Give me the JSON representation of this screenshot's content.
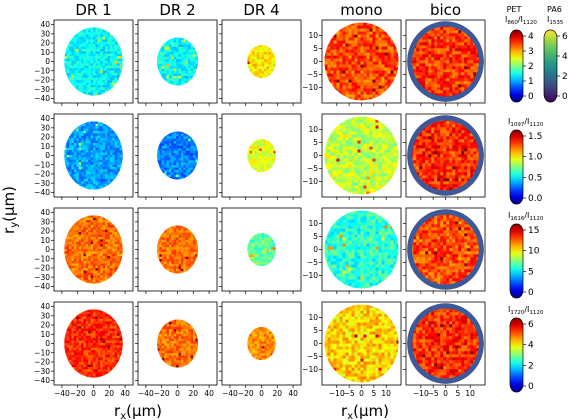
{
  "chart_data": {
    "type": "heatmap",
    "columns": [
      "DR 1",
      "DR 2",
      "DR 4",
      "mono",
      "bico"
    ],
    "xlabel_left": "rx(μm)",
    "xlabel_right": "rx(μm)",
    "ylabel": "ry(μm)",
    "left_axes": {
      "xlim": [
        -50,
        50
      ],
      "ylim": [
        -45,
        45
      ],
      "xticks": [
        -40,
        -20,
        0,
        20,
        40
      ],
      "yticks": [
        -40,
        -30,
        -20,
        -10,
        0,
        10,
        20,
        30,
        40
      ],
      "circle_radius": {
        "DR 1": 37,
        "DR 2": 26,
        "DR 4": 18
      }
    },
    "right_axes": {
      "xlim": [
        -16,
        16
      ],
      "ylim": [
        -16,
        16
      ],
      "xticks": [
        -10,
        -5,
        0,
        5,
        10
      ],
      "yticks": [
        -10,
        -5,
        0,
        5,
        10
      ],
      "circle_radius": {
        "mono": 15,
        "bico": 15.5
      },
      "bico_shell_inner_radius": 13.5,
      "bico_shell_color": "#3a5a9c"
    },
    "rows": [
      {
        "ratio_label_main": "I",
        "ratio_sub_num": "860",
        "ratio_sep": "/I",
        "ratio_sub_den": "1120",
        "cbar_ticks": [
          "0",
          "1",
          "2",
          "3",
          "4"
        ],
        "cbar_range": [
          0,
          4
        ],
        "mean_values": {
          "DR 1": 1.5,
          "DR 2": 1.5,
          "DR 4": 2.6,
          "mono": 3.2,
          "bico": 3.3
        },
        "prefix": "PET",
        "pa6_label": "PA6",
        "pa6_sub": "1535",
        "pa6_ticks": [
          "0",
          "2",
          "4",
          "6"
        ],
        "pa6_range": [
          0,
          6
        ]
      },
      {
        "ratio_label_main": "I",
        "ratio_sub_num": "1097",
        "ratio_sep": "/I",
        "ratio_sub_den": "1120",
        "cbar_ticks": [
          "0.0",
          "0.5",
          "1.0",
          "1.5"
        ],
        "cbar_range": [
          0,
          1.5
        ],
        "mean_values": {
          "DR 1": 0.42,
          "DR 2": 0.38,
          "DR 4": 0.9,
          "mono": 0.85,
          "bico": 1.25
        }
      },
      {
        "ratio_label_main": "I",
        "ratio_sub_num": "1616",
        "ratio_sep": "/I",
        "ratio_sub_den": "1120",
        "cbar_ticks": [
          "0",
          "5",
          "10",
          "15"
        ],
        "cbar_range": [
          0,
          15
        ],
        "mean_values": {
          "DR 1": 11.5,
          "DR 2": 11.5,
          "DR 4": 7,
          "mono": 6.3,
          "bico": 12
        }
      },
      {
        "ratio_label_main": "I",
        "ratio_sub_num": "1720",
        "ratio_sep": "/I",
        "ratio_sub_den": "1120",
        "cbar_ticks": [
          "0",
          "2",
          "4",
          "6"
        ],
        "cbar_range": [
          0,
          6
        ],
        "mean_values": {
          "DR 1": 5.0,
          "DR 2": 4.6,
          "DR 4": 4.4,
          "mono": 4.0,
          "bico": 5.0
        }
      }
    ]
  }
}
